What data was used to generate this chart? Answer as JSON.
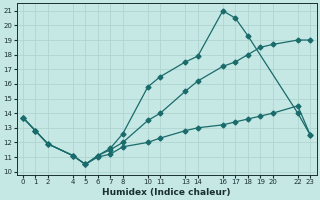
{
  "xlabel": "Humidex (Indice chaleur)",
  "bg_color": "#c5e8e5",
  "grid_color": "#b0d4d0",
  "line_color": "#1a6b6b",
  "xlim": [
    -0.5,
    23.5
  ],
  "ylim": [
    9.8,
    21.5
  ],
  "xticks": [
    0,
    1,
    2,
    4,
    5,
    6,
    7,
    8,
    10,
    11,
    13,
    14,
    16,
    17,
    18,
    19,
    20,
    22,
    23
  ],
  "yticks": [
    10,
    11,
    12,
    13,
    14,
    15,
    16,
    17,
    18,
    19,
    20,
    21
  ],
  "line_top_x": [
    0,
    1,
    2,
    4,
    5,
    6,
    7,
    8,
    10,
    11,
    13,
    14,
    16,
    17,
    18,
    22,
    23
  ],
  "line_top_y": [
    13.7,
    12.8,
    11.9,
    11.1,
    10.5,
    11.1,
    11.6,
    12.6,
    15.8,
    16.5,
    17.5,
    17.9,
    21.0,
    20.5,
    19.3,
    14.0,
    12.5
  ],
  "line_mid_x": [
    0,
    1,
    2,
    4,
    5,
    6,
    7,
    8,
    10,
    11,
    13,
    14,
    16,
    17,
    18,
    19,
    20,
    22,
    23
  ],
  "line_mid_y": [
    13.7,
    12.8,
    11.9,
    11.1,
    10.5,
    11.1,
    11.5,
    12.0,
    13.5,
    14.0,
    15.5,
    16.2,
    17.2,
    17.5,
    18.0,
    18.5,
    18.7,
    19.0,
    19.0
  ],
  "line_bot_x": [
    0,
    1,
    2,
    4,
    5,
    6,
    7,
    8,
    10,
    11,
    13,
    14,
    16,
    17,
    18,
    19,
    20,
    22,
    23
  ],
  "line_bot_y": [
    13.7,
    12.8,
    11.9,
    11.1,
    10.5,
    11.0,
    11.2,
    11.7,
    12.0,
    12.3,
    12.8,
    13.0,
    13.2,
    13.4,
    13.6,
    13.8,
    14.0,
    14.5,
    12.5
  ]
}
